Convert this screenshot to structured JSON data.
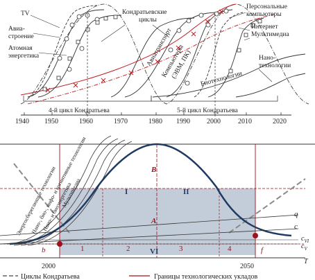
{
  "top": {
    "axis": {
      "years": [
        "1940",
        "1950",
        "1960",
        "1970",
        "1980",
        "1990",
        "2000",
        "2010",
        "2020"
      ]
    },
    "cycles": {
      "fourth": "4-й цикл Кондратьева",
      "fifth": "5-й цикл Кондратьева"
    },
    "labels": {
      "tv": "TV",
      "avia": "Авиа-",
      "avia2": "строение",
      "atom": "Атомная",
      "atom2": "энергетика",
      "kondr": "Кондратьевские",
      "kondr2": "циклы",
      "aviatransport": "Авиатранспорт",
      "computers": "Компьютеры",
      "computers2": "(ЭВМ, ПК)",
      "biotech": "Биотехнологии",
      "pc": "Персональные",
      "pc2": "компьютеры",
      "internet": "Интернет",
      "multimedia": "Мультимедиа",
      "nano": "Нано-",
      "nano2": "технологии"
    }
  },
  "bottom": {
    "axis": {
      "years": [
        "2000",
        "2050"
      ],
      "t": "T"
    },
    "letters": {
      "B": "B",
      "A": "A",
      "I": "I",
      "II": "II",
      "VI": "VI",
      "b": "b",
      "f": "f",
      "q": "q",
      "c": "c",
      "cVI": "c",
      "cVI_sub": "VI",
      "cV": "c",
      "cV_sub": "V"
    },
    "phases": [
      "1",
      "2",
      "3",
      "4"
    ],
    "rising": [
      "Энергосберегающие технологии",
      "Мультимедиа",
      "Нано-, био-, инфо- и когнитивные технологии",
      "Нано- и биоэнергетика"
    ]
  },
  "legend": {
    "kondratiev": "Циклы Кондратьева",
    "boundaries": "Границы технологических укладов"
  },
  "colors": {
    "red": "#a0101a",
    "navy": "#1f3b63",
    "fill": "#c3ccd9",
    "gray": "#8a8a8a"
  }
}
